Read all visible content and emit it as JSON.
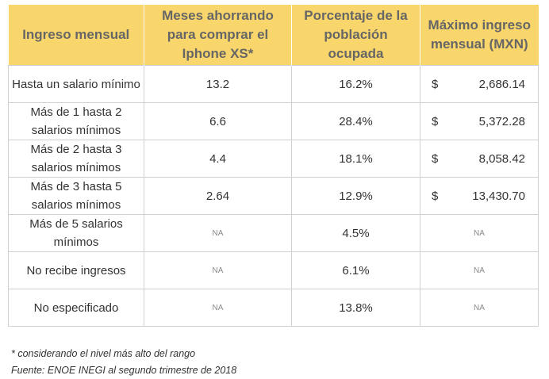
{
  "table": {
    "headers": [
      "Ingreso mensual",
      "Meses ahorrando para comprar el Iphone XS*",
      "Porcentaje de la población ocupada",
      "Máximo ingreso mensual (MXN)"
    ],
    "rows": [
      {
        "ingreso": "Hasta un salario mínimo",
        "meses": "13.2",
        "porcentaje": "16.2%",
        "currency": "$",
        "maximo": "2,686.14"
      },
      {
        "ingreso": "Más de 1 hasta 2 salarios mínimos",
        "meses": "6.6",
        "porcentaje": "28.4%",
        "currency": "$",
        "maximo": "5,372.28"
      },
      {
        "ingreso": "Más de 2 hasta 3 salarios mínimos",
        "meses": "4.4",
        "porcentaje": "18.1%",
        "currency": "$",
        "maximo": "8,058.42"
      },
      {
        "ingreso": "Más de 3 hasta 5 salarios mínimos",
        "meses": "2.64",
        "porcentaje": "12.9%",
        "currency": "$",
        "maximo": "13,430.70"
      },
      {
        "ingreso": "Más de 5 salarios mínimos",
        "meses": "NA",
        "porcentaje": "4.5%",
        "maximo": "NA"
      },
      {
        "ingreso": "No recibe ingresos",
        "meses": "NA",
        "porcentaje": "6.1%",
        "maximo": "NA"
      },
      {
        "ingreso": "No especificado",
        "meses": "NA",
        "porcentaje": "13.8%",
        "maximo": "NA"
      }
    ]
  },
  "footnotes": {
    "note": "* considerando el nivel más alto del rango",
    "source": "Fuente: ENOE INEGI al segundo trimestre de 2018"
  },
  "colors": {
    "header_bg": "#f9d66b",
    "header_text": "#666666",
    "border": "#d0d0d0"
  }
}
